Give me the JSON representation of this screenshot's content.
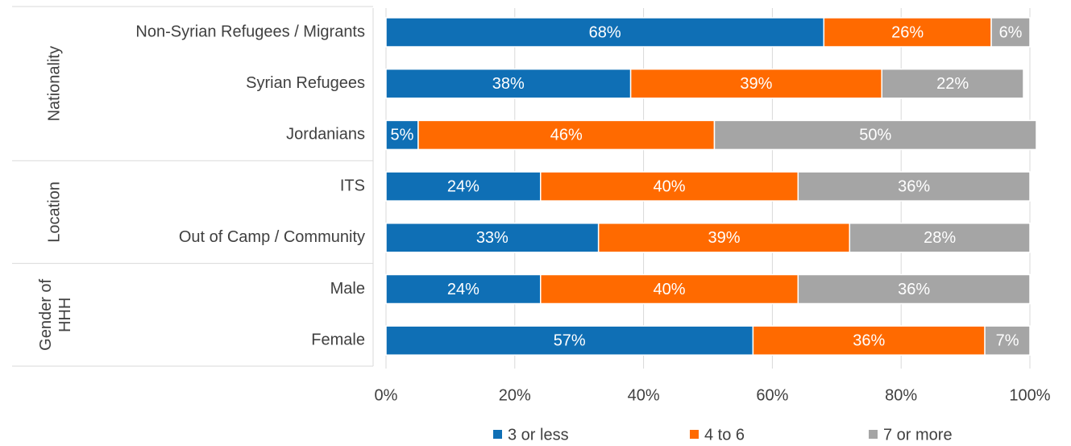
{
  "chart_data": {
    "type": "bar",
    "orientation": "horizontal",
    "stacked": true,
    "title": "",
    "xlabel": "",
    "ylabel": "",
    "xlim": [
      0,
      100
    ],
    "x_ticks": [
      "0%",
      "20%",
      "40%",
      "60%",
      "80%",
      "100%"
    ],
    "grid": "vertical",
    "legend_position": "bottom",
    "groups": [
      {
        "label": "Nationality",
        "categories": [
          "Non-Syrian Refugees / Migrants",
          "Syrian Refugees",
          "Jordanians"
        ]
      },
      {
        "label": "Location",
        "categories": [
          "ITS",
          "Out of Camp / Community"
        ]
      },
      {
        "label": "Gender of HHH",
        "categories": [
          "Male",
          "Female"
        ]
      }
    ],
    "categories": [
      "Non-Syrian Refugees / Migrants",
      "Syrian Refugees",
      "Jordanians",
      "ITS",
      "Out of Camp / Community",
      "Male",
      "Female"
    ],
    "series": [
      {
        "name": "3 or less",
        "color": "#0f6fb5",
        "values": [
          68,
          38,
          5,
          24,
          33,
          24,
          57
        ]
      },
      {
        "name": "4 to 6",
        "color": "#ff6a00",
        "values": [
          26,
          39,
          46,
          40,
          39,
          40,
          36
        ]
      },
      {
        "name": "7 or more",
        "color": "#a5a5a5",
        "values": [
          6,
          22,
          50,
          36,
          28,
          36,
          7
        ]
      }
    ]
  }
}
